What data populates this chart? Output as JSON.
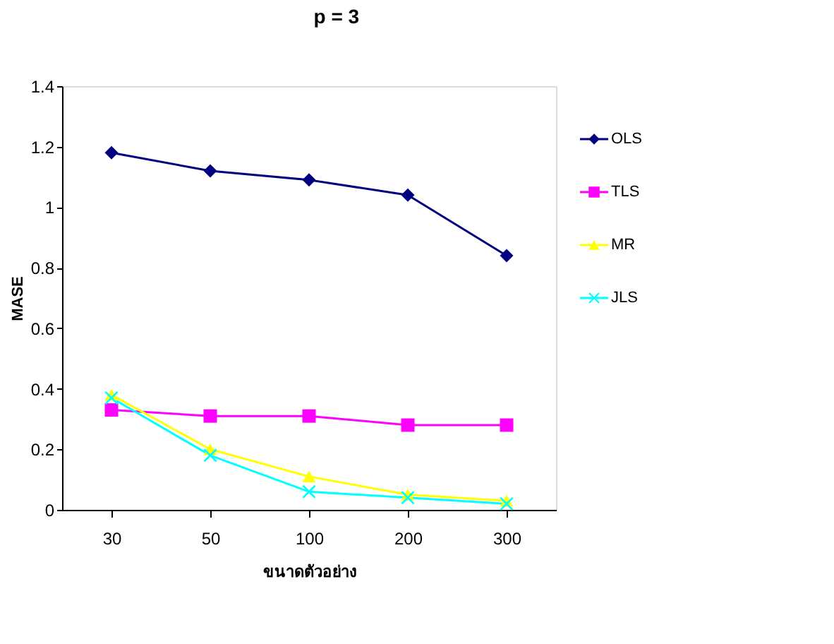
{
  "chart_data": {
    "type": "line",
    "title": "p = 3",
    "xlabel": "ขนาดตัวอย่าง",
    "ylabel": "MASE",
    "categories": [
      "30",
      "50",
      "100",
      "200",
      "300"
    ],
    "series": [
      {
        "name": "OLS",
        "color": "#000080",
        "marker": "diamond",
        "values": [
          1.18,
          1.12,
          1.09,
          1.04,
          0.84
        ]
      },
      {
        "name": "TLS",
        "color": "#ff00ff",
        "marker": "square",
        "values": [
          0.33,
          0.31,
          0.31,
          0.28,
          0.28
        ]
      },
      {
        "name": "MR",
        "color": "#ffff00",
        "marker": "triangle",
        "values": [
          0.38,
          0.2,
          0.11,
          0.05,
          0.03
        ]
      },
      {
        "name": "JLS",
        "color": "#00ffff",
        "marker": "cross",
        "values": [
          0.37,
          0.18,
          0.06,
          0.04,
          0.02
        ]
      }
    ],
    "ylim": [
      0,
      1.4
    ],
    "yticks": [
      0,
      0.2,
      0.4,
      0.6,
      0.8,
      1,
      1.2,
      1.4
    ],
    "grid": false,
    "legend": "right"
  }
}
